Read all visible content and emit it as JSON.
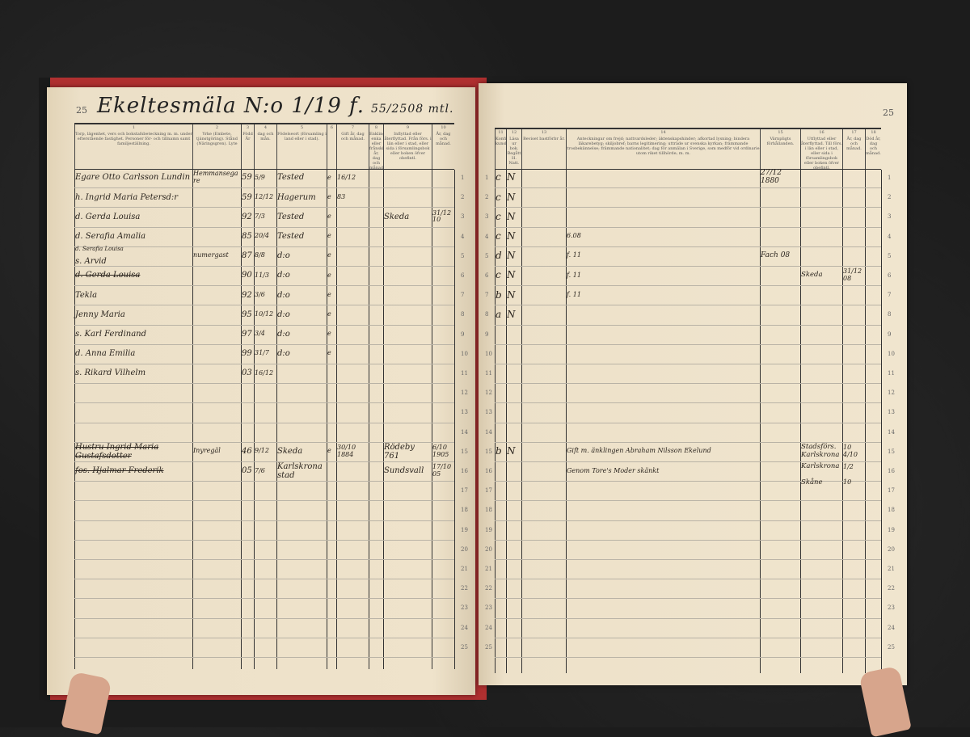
{
  "left_page": {
    "page_number": "25",
    "title": "Ekeltesmäla N:o 1/19 f.",
    "title_note": "55/2508 mtl.",
    "header": [
      {
        "num": "1",
        "text": "Torp, lägenhet, vers och bokstafsbeteckning m. m. under efterstående fastighet. Personer för- och tillnamn samt familjeställning."
      },
      {
        "num": "2",
        "text": "Yrke (Embete, tjänstgöring). Stånd (Näringsgren). Lyte"
      },
      {
        "num": "3",
        "text": "Född År"
      },
      {
        "num": "4",
        "text": "dag och mån."
      },
      {
        "num": "5",
        "text": "Födelseort (församling i land eller i stad)."
      },
      {
        "num": "6",
        "text": ""
      },
      {
        "num": "7",
        "text": "Gift år, dag och månad."
      },
      {
        "num": "8",
        "text": "Enkling, enka eller frånskild år, dag och månad."
      },
      {
        "num": "9",
        "text": "Inflyttad eller återflyttad. Från förs. i län eller i stad, eller sida i församlingsbok eller boken öfver obefintl."
      },
      {
        "num": "10",
        "text": "År, dag och månad."
      }
    ],
    "entries": [
      {
        "row": 1,
        "col": "name",
        "text": "Egare Otto Carlsson Lundin"
      },
      {
        "row": 1,
        "col": "occupation",
        "text": "Hemmansegare"
      },
      {
        "row": 1,
        "col": "year",
        "text": "59"
      },
      {
        "row": 1,
        "col": "day",
        "text": "5/9"
      },
      {
        "row": 1,
        "col": "place",
        "text": "Tested"
      },
      {
        "row": 1,
        "col": "c6",
        "text": "e"
      },
      {
        "row": 1,
        "col": "married",
        "text": "16/12"
      },
      {
        "row": 2,
        "col": "married",
        "text": "83"
      },
      {
        "row": 2,
        "col": "name",
        "text": "h. Ingrid Maria Petersd:r"
      },
      {
        "row": 2,
        "col": "year",
        "text": "59"
      },
      {
        "row": 2,
        "col": "day",
        "text": "12/12"
      },
      {
        "row": 2,
        "col": "place",
        "text": "Hagerum"
      },
      {
        "row": 2,
        "col": "c6",
        "text": "e"
      },
      {
        "row": 3,
        "col": "name",
        "text": "d. Gerda Louisa"
      },
      {
        "row": 3,
        "col": "year",
        "text": "92"
      },
      {
        "row": 3,
        "col": "day",
        "text": "7/3"
      },
      {
        "row": 3,
        "col": "place",
        "text": "Tested"
      },
      {
        "row": 3,
        "col": "c6",
        "text": "e"
      },
      {
        "row": 3,
        "col": "moved_from",
        "text": "Skeda"
      },
      {
        "row": 3,
        "col": "moved_date",
        "text": "31/12 10"
      },
      {
        "row": 4,
        "col": "name",
        "text": "d. Serafia Amalia"
      },
      {
        "row": 4,
        "col": "year",
        "text": "85"
      },
      {
        "row": 4,
        "col": "day",
        "text": "20/4"
      },
      {
        "row": 4,
        "col": "place",
        "text": "Tested"
      },
      {
        "row": 4,
        "col": "c6",
        "text": "e"
      },
      {
        "row": 5,
        "col": "name_note",
        "text": "d. Serafia Louisa"
      },
      {
        "row": 5,
        "col": "name",
        "text": "s. Arvid"
      },
      {
        "row": 5,
        "col": "occupation",
        "text": "numergast"
      },
      {
        "row": 5,
        "col": "year",
        "text": "87"
      },
      {
        "row": 5,
        "col": "day",
        "text": "8/8"
      },
      {
        "row": 5,
        "col": "place",
        "text": "d:o"
      },
      {
        "row": 5,
        "col": "c6",
        "text": "e"
      },
      {
        "row": 6,
        "col": "name",
        "text": "d. Gerda Louisa",
        "struck": true
      },
      {
        "row": 6,
        "col": "year",
        "text": "90"
      },
      {
        "row": 6,
        "col": "day",
        "text": "11/3"
      },
      {
        "row": 6,
        "col": "place",
        "text": "d:o"
      },
      {
        "row": 6,
        "col": "c6",
        "text": "e"
      },
      {
        "row": 7,
        "col": "name",
        "text": "Tekla"
      },
      {
        "row": 7,
        "col": "year",
        "text": "92"
      },
      {
        "row": 7,
        "col": "day",
        "text": "3/6"
      },
      {
        "row": 7,
        "col": "place",
        "text": "d:o"
      },
      {
        "row": 7,
        "col": "c6",
        "text": "e"
      },
      {
        "row": 8,
        "col": "name",
        "text": "Jenny Maria"
      },
      {
        "row": 8,
        "col": "year",
        "text": "95"
      },
      {
        "row": 8,
        "col": "day",
        "text": "10/12"
      },
      {
        "row": 8,
        "col": "place",
        "text": "d:o"
      },
      {
        "row": 8,
        "col": "c6",
        "text": "e"
      },
      {
        "row": 9,
        "col": "name",
        "text": "s. Karl Ferdinand"
      },
      {
        "row": 9,
        "col": "year",
        "text": "97"
      },
      {
        "row": 9,
        "col": "day",
        "text": "3/4"
      },
      {
        "row": 9,
        "col": "place",
        "text": "d:o"
      },
      {
        "row": 9,
        "col": "c6",
        "text": "e"
      },
      {
        "row": 10,
        "col": "name",
        "text": "d. Anna Emilia"
      },
      {
        "row": 10,
        "col": "year",
        "text": "99"
      },
      {
        "row": 10,
        "col": "day",
        "text": "31/7"
      },
      {
        "row": 10,
        "col": "place",
        "text": "d:o"
      },
      {
        "row": 10,
        "col": "c6",
        "text": "e"
      },
      {
        "row": 11,
        "col": "name",
        "text": "s. Rikard Vilhelm"
      },
      {
        "row": 11,
        "col": "year",
        "text": "03"
      },
      {
        "row": 11,
        "col": "day",
        "text": "16/12"
      },
      {
        "row": 15,
        "col": "name",
        "text": "Hustru Ingrid Maria Gustafsdotter",
        "struck": true
      },
      {
        "row": 15,
        "col": "occupation",
        "text": "Inyregäl"
      },
      {
        "row": 15,
        "col": "year",
        "text": "46"
      },
      {
        "row": 15,
        "col": "day",
        "text": "9/12"
      },
      {
        "row": 15,
        "col": "place",
        "text": "Skeda"
      },
      {
        "row": 15,
        "col": "c6",
        "text": "e"
      },
      {
        "row": 15,
        "col": "married",
        "text": "30/10 1884"
      },
      {
        "row": 15,
        "col": "moved_from",
        "text": "Rödeby 761"
      },
      {
        "row": 15,
        "col": "moved_date",
        "text": "6/10 1905"
      },
      {
        "row": 16,
        "col": "name",
        "text": "fos. Hjalmar Frederik",
        "struck": true
      },
      {
        "row": 16,
        "col": "year",
        "text": "05"
      },
      {
        "row": 16,
        "col": "day",
        "text": "7/6"
      },
      {
        "row": 16,
        "col": "place",
        "text": "Karlskrona stad"
      },
      {
        "row": 16,
        "col": "moved_from",
        "text": "Sundsvall"
      },
      {
        "row": 16,
        "col": "moved_date",
        "text": "17/10 05"
      }
    ]
  },
  "right_page": {
    "page_number": "25",
    "header": [
      {
        "num": "11",
        "text": "Konfirmation kunskap."
      },
      {
        "num": "12",
        "text": "Läsa ur bok. Begått H. Natt."
      },
      {
        "num": "13",
        "text": "Beviset bastförbr år."
      },
      {
        "num": "14",
        "text": "Anteckningar om frejd; nattvardsleder; äktenskapshinder; afkortad lysning; bindera läkarebetyg; skiljobref; barns legitimering; utträde ur svenska kyrkan; främmande trosbekännelse; främmande nationalitet; dag för anmälan i Sverige, som medför vid ordinarie utom riket tillhörde; m. m."
      },
      {
        "num": "15",
        "text": "Värnpligts förhållanden."
      },
      {
        "num": "16",
        "text": "Utflyttad eller återflyttad. Till förs. i län eller i stad, eller sida i församlingsbok eller boken öfver obefintl."
      },
      {
        "num": "17",
        "text": "År, dag och månad."
      },
      {
        "num": "18",
        "text": "Död år, dag och månad."
      }
    ],
    "entries": [
      {
        "row": 1,
        "col": "c11",
        "text": "c"
      },
      {
        "row": 1,
        "col": "c12",
        "text": "N"
      },
      {
        "row": 1,
        "col": "c15",
        "text": "27/12 1880"
      },
      {
        "row": 2,
        "col": "c11",
        "text": "c"
      },
      {
        "row": 2,
        "col": "c12",
        "text": "N"
      },
      {
        "row": 3,
        "col": "c11",
        "text": "c"
      },
      {
        "row": 3,
        "col": "c12",
        "text": "N"
      },
      {
        "row": 4,
        "col": "c11",
        "text": "c"
      },
      {
        "row": 4,
        "col": "c12",
        "text": "N"
      },
      {
        "row": 4,
        "col": "c14",
        "text": "6.08",
        "small": true
      },
      {
        "row": 5,
        "col": "c11",
        "text": "d"
      },
      {
        "row": 5,
        "col": "c12",
        "text": "N"
      },
      {
        "row": 5,
        "col": "c14",
        "text": "f. 11",
        "small": true
      },
      {
        "row": 5,
        "col": "c15",
        "text": "Fach 08",
        "small": true
      },
      {
        "row": 6,
        "col": "c11",
        "text": "c"
      },
      {
        "row": 6,
        "col": "c12",
        "text": "N"
      },
      {
        "row": 6,
        "col": "c14",
        "text": "f. 11",
        "small": true
      },
      {
        "row": 6,
        "col": "c16",
        "text": "Skeda"
      },
      {
        "row": 6,
        "col": "c17",
        "text": "31/12 08"
      },
      {
        "row": 7,
        "col": "c11",
        "text": "b"
      },
      {
        "row": 7,
        "col": "c12",
        "text": "N"
      },
      {
        "row": 7,
        "col": "c14",
        "text": "f. 11",
        "small": true
      },
      {
        "row": 8,
        "col": "c11",
        "text": "a"
      },
      {
        "row": 8,
        "col": "c12",
        "text": "N"
      },
      {
        "row": 15,
        "col": "c11",
        "text": "b"
      },
      {
        "row": 15,
        "col": "c12",
        "text": "N"
      },
      {
        "row": 15,
        "col": "c14",
        "text": "Gift m. änklingen Abraham Nilsson Ekelund",
        "small": true
      },
      {
        "row": 16,
        "col": "c14",
        "text": "Genom Tore's Moder skänkt",
        "small": true
      },
      {
        "row": 15,
        "col": "c16",
        "text": "Stadsförs. Karlskrona"
      },
      {
        "row": 15,
        "col": "c17",
        "text": "10 4/10"
      },
      {
        "row": 16,
        "col": "c16",
        "text": "Karlskrona"
      },
      {
        "row": 16,
        "col": "c17",
        "text": "1/2"
      },
      {
        "row": 16.6,
        "col": "c16",
        "text": "Skåne"
      },
      {
        "row": 16.6,
        "col": "c17",
        "text": "10"
      }
    ]
  },
  "row_numbers": [
    "1",
    "2",
    "3",
    "4",
    "5",
    "6",
    "7",
    "8",
    "9",
    "10",
    "11",
    "12",
    "13",
    "14",
    "15",
    "16",
    "17",
    "18",
    "19",
    "20",
    "21",
    "22",
    "23",
    "24",
    "25"
  ]
}
